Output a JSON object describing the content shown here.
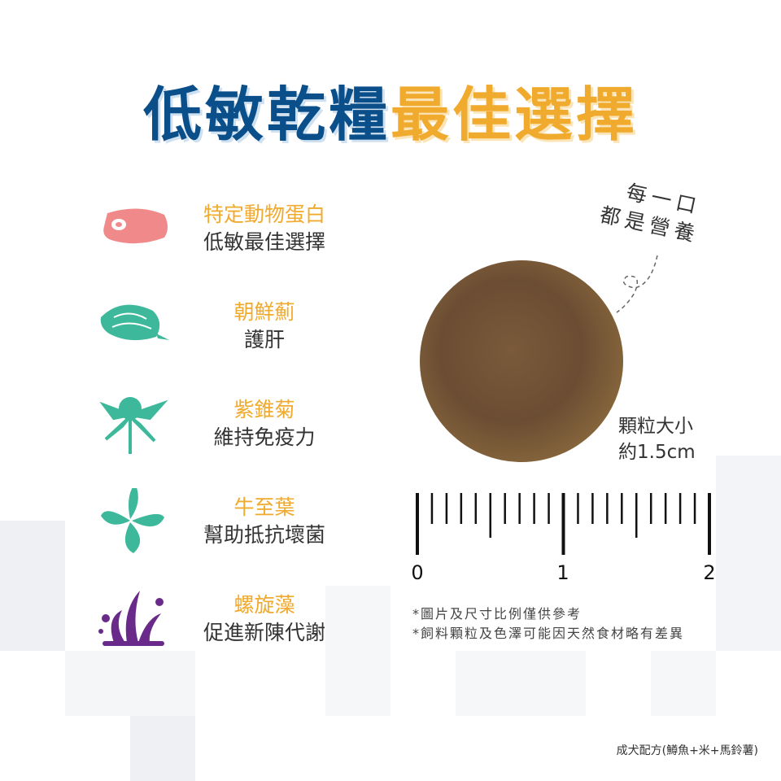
{
  "title": {
    "part1": "低敏乾糧",
    "part2": "最佳選擇"
  },
  "colors": {
    "blue": "#0b4f8a",
    "orange": "#f0aa2e",
    "teal": "#3db89a",
    "pink": "#f08a8a",
    "purple": "#6a2a8a"
  },
  "features": [
    {
      "icon": "meat-icon",
      "name": "特定動物蛋白",
      "benefit": "低敏最佳選擇"
    },
    {
      "icon": "artichoke-icon",
      "name": "朝鮮薊",
      "benefit": "護肝"
    },
    {
      "icon": "echinacea-icon",
      "name": "紫錐菊",
      "benefit": "維持免疫力"
    },
    {
      "icon": "oregano-leaf-icon",
      "name": "牛至葉",
      "benefit": "幫助抵抗壞菌"
    },
    {
      "icon": "spirulina-icon",
      "name": "螺旋藻",
      "benefit": "促進新陳代謝"
    }
  ],
  "note": {
    "line1": "每一口",
    "line2": "都是營養"
  },
  "kibble_size": {
    "line1": "顆粒大小",
    "line2": "約1.5cm"
  },
  "ruler": {
    "labels": [
      "0",
      "1",
      "2"
    ],
    "unit": "cm"
  },
  "disclaimers": [
    "*圖片及尺寸比例僅供參考",
    "*飼料顆粒及色澤可能因天然食材略有差異"
  ],
  "formula": "成犬配方(鱒魚+米+馬鈴薯)"
}
